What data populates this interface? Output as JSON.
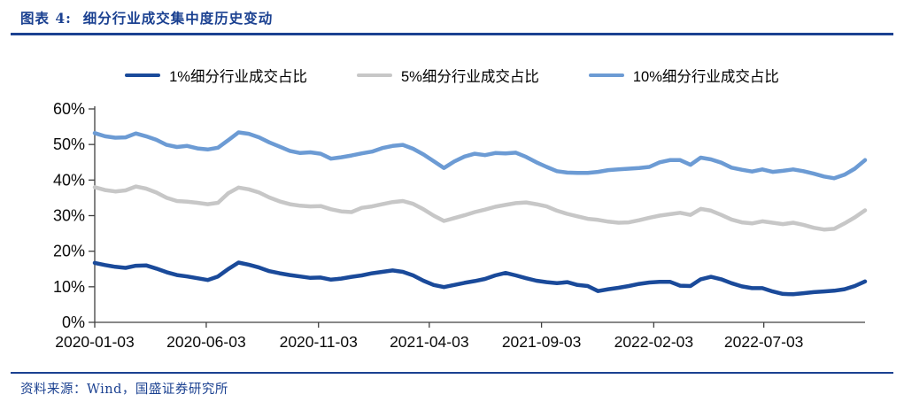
{
  "header": {
    "title": "图表 4:  细分行业成交集中度历史变动"
  },
  "footer": {
    "source": "资料来源：Wind，国盛证券研究所"
  },
  "colors": {
    "accent_blue": "#1B4191",
    "series_1pct": "#1A4A9A",
    "series_5pct": "#C7C7C7",
    "series_10pct": "#6C9BD4",
    "axis": "#404040"
  },
  "legend": {
    "items": [
      {
        "label": "1%细分行业成交占比",
        "color": "#1A4A9A"
      },
      {
        "label": "5%细分行业成交占比",
        "color": "#C7C7C7"
      },
      {
        "label": "10%细分行业成交占比",
        "color": "#6C9BD4"
      }
    ]
  },
  "chart_data": {
    "type": "line",
    "title": "细分行业成交集中度历史变动",
    "xlabel": "",
    "ylabel": "",
    "grid": false,
    "legend_position": "top",
    "ylim": [
      0,
      60
    ],
    "y_ticks": [
      0,
      10,
      20,
      30,
      40,
      50,
      60
    ],
    "y_tick_labels": [
      "0%",
      "10%",
      "20%",
      "30%",
      "40%",
      "50%",
      "60%"
    ],
    "x_start_date": "2020-01-03",
    "x_step_days": 14,
    "x_total_days": 1050,
    "x_tick_labels": [
      "2020-01-03",
      "2020-06-03",
      "2020-11-03",
      "2021-04-03",
      "2021-09-03",
      "2022-02-03",
      "2022-07-03"
    ],
    "x_tick_positions_days": [
      0,
      152,
      305,
      456,
      609,
      762,
      912
    ],
    "unit": "percent",
    "series": [
      {
        "name": "1%细分行业成交占比",
        "color": "#1A4A9A",
        "values": [
          16.7,
          16.1,
          15.6,
          15.3,
          15.9,
          16.0,
          15.1,
          14.1,
          13.3,
          12.9,
          12.4,
          11.9,
          12.9,
          15.0,
          16.8,
          16.2,
          15.4,
          14.4,
          13.8,
          13.3,
          12.9,
          12.5,
          12.6,
          12.0,
          12.3,
          12.8,
          13.2,
          13.8,
          14.2,
          14.6,
          14.2,
          13.2,
          11.7,
          10.5,
          9.9,
          10.5,
          11.1,
          11.6,
          12.2,
          13.2,
          13.9,
          13.2,
          12.4,
          11.7,
          11.3,
          11.0,
          11.3,
          10.5,
          10.2,
          8.8,
          9.3,
          9.7,
          10.2,
          10.8,
          11.2,
          11.4,
          11.4,
          10.3,
          10.2,
          12.1,
          12.8,
          12.1,
          11.0,
          10.1,
          9.6,
          9.6,
          8.7,
          8.0,
          7.9,
          8.2,
          8.5,
          8.7,
          8.9,
          9.3,
          10.2,
          11.5
        ]
      },
      {
        "name": "5%细分行业成交占比",
        "color": "#C7C7C7",
        "values": [
          38.0,
          37.2,
          36.8,
          37.1,
          38.2,
          37.6,
          36.5,
          35.0,
          34.1,
          33.9,
          33.6,
          33.2,
          33.6,
          36.3,
          37.9,
          37.4,
          36.5,
          35.1,
          34.0,
          33.2,
          32.8,
          32.6,
          32.7,
          31.8,
          31.2,
          31.0,
          32.2,
          32.6,
          33.2,
          33.8,
          34.1,
          33.3,
          31.8,
          30.0,
          28.5,
          29.3,
          30.1,
          31.0,
          31.7,
          32.5,
          33.0,
          33.5,
          33.7,
          33.2,
          32.6,
          31.4,
          30.5,
          29.8,
          29.1,
          28.8,
          28.3,
          28.0,
          28.1,
          28.7,
          29.4,
          30.0,
          30.4,
          30.8,
          30.2,
          31.9,
          31.4,
          30.2,
          28.9,
          28.1,
          27.8,
          28.4,
          28.0,
          27.6,
          28.0,
          27.4,
          26.6,
          26.1,
          26.3,
          27.8,
          29.5,
          31.5
        ]
      },
      {
        "name": "10%细分行业成交占比",
        "color": "#6C9BD4",
        "values": [
          53.2,
          52.3,
          51.9,
          52.0,
          53.1,
          52.3,
          51.3,
          49.9,
          49.3,
          49.6,
          48.9,
          48.6,
          49.1,
          51.2,
          53.4,
          53.0,
          52.0,
          50.6,
          49.4,
          48.2,
          47.6,
          47.8,
          47.4,
          46.0,
          46.4,
          46.9,
          47.5,
          48.0,
          49.0,
          49.6,
          49.9,
          48.8,
          47.2,
          45.3,
          43.4,
          45.2,
          46.6,
          47.4,
          47.0,
          47.6,
          47.5,
          47.7,
          46.5,
          45.0,
          43.7,
          42.5,
          42.1,
          42.0,
          42.0,
          42.3,
          42.8,
          43.0,
          43.2,
          43.4,
          43.7,
          45.0,
          45.6,
          45.6,
          44.3,
          46.3,
          45.8,
          44.9,
          43.5,
          42.9,
          42.4,
          43.0,
          42.3,
          42.6,
          43.0,
          42.5,
          41.8,
          41.0,
          40.5,
          41.5,
          43.2,
          45.6
        ]
      }
    ]
  }
}
